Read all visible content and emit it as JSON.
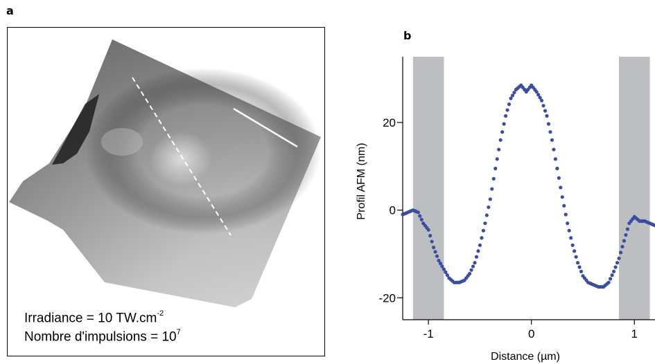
{
  "panel_a": {
    "label": "a",
    "caption_irradiance": "Irradiance = 10 TW.cm",
    "caption_irradiance_exp": "-2",
    "caption_pulses": "Nombre d'impulsions = 10",
    "caption_pulses_exp": "7"
  },
  "panel_b": {
    "label": "b"
  },
  "chart_data": {
    "type": "scatter",
    "title": "",
    "xlabel": "Distance (µm)",
    "ylabel": "Profil AFM (nm)",
    "xlim": [
      -1.25,
      1.2
    ],
    "ylim": [
      -25,
      35
    ],
    "xticks": [
      -1,
      0,
      1
    ],
    "xtick_labels": [
      "-1",
      "0",
      "1"
    ],
    "yticks": [
      -20,
      0,
      20
    ],
    "ytick_labels": [
      "-20",
      "0",
      "20"
    ],
    "grid": false,
    "marker_color": "#3a4da1",
    "shaded_bands": [
      {
        "x_from": -1.15,
        "x_to": -0.85,
        "color": "#bdbec1"
      },
      {
        "x_from": 0.85,
        "x_to": 1.15,
        "color": "#bdbec1"
      }
    ],
    "x": [
      -1.25,
      -1.2,
      -1.15,
      -1.1,
      -1.05,
      -1.0,
      -0.95,
      -0.9,
      -0.85,
      -0.8,
      -0.75,
      -0.7,
      -0.65,
      -0.6,
      -0.55,
      -0.5,
      -0.45,
      -0.4,
      -0.35,
      -0.3,
      -0.25,
      -0.2,
      -0.15,
      -0.1,
      -0.05,
      0.0,
      0.05,
      0.1,
      0.15,
      0.2,
      0.25,
      0.3,
      0.35,
      0.4,
      0.45,
      0.5,
      0.55,
      0.6,
      0.65,
      0.7,
      0.75,
      0.8,
      0.85,
      0.9,
      0.95,
      1.0,
      1.05,
      1.1,
      1.15,
      1.2
    ],
    "y": [
      -1.0,
      -0.5,
      0.0,
      -0.5,
      -3.0,
      -4.5,
      -8.5,
      -11.5,
      -13.5,
      -15.5,
      -16.5,
      -16.5,
      -16.0,
      -14.5,
      -12.0,
      -8.0,
      -3.0,
      2.5,
      9.5,
      16.0,
      21.5,
      25.5,
      27.5,
      28.5,
      27.0,
      28.5,
      27.0,
      25.0,
      21.5,
      16.0,
      9.5,
      3.0,
      -3.0,
      -8.0,
      -12.0,
      -15.0,
      -16.5,
      -17.0,
      -17.5,
      -17.5,
      -16.5,
      -14.0,
      -11.0,
      -7.0,
      -3.0,
      -1.5,
      -2.5,
      -2.5,
      -3.0,
      -3.5
    ]
  }
}
